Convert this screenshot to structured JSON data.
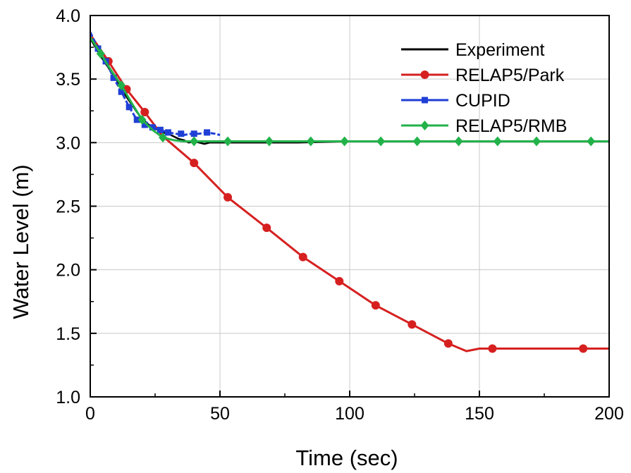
{
  "chart_data": {
    "type": "line",
    "title": "",
    "xlabel": "Time (sec)",
    "ylabel": "Water Level (m)",
    "xlim": [
      0,
      200
    ],
    "ylim": [
      1.0,
      4.0
    ],
    "xticks": [
      "0",
      "50",
      "100",
      "150",
      "200"
    ],
    "yticks": [
      "1.0",
      "1.5",
      "2.0",
      "2.5",
      "3.0",
      "3.5",
      "4.0"
    ],
    "grid": true,
    "legend_position": "top-right",
    "series": [
      {
        "name": "Experiment",
        "color": "#000000",
        "marker": "none",
        "x": [
          0,
          2,
          4,
          6,
          8,
          10,
          12,
          14,
          16,
          18,
          20,
          22,
          24,
          26,
          28,
          30,
          32,
          34,
          36,
          38,
          40,
          42,
          44,
          46,
          50,
          60,
          80,
          100,
          120,
          140,
          160,
          180,
          200
        ],
        "y": [
          3.82,
          3.75,
          3.68,
          3.62,
          3.56,
          3.5,
          3.42,
          3.36,
          3.3,
          3.24,
          3.19,
          3.15,
          3.12,
          3.1,
          3.08,
          3.07,
          3.05,
          3.03,
          3.02,
          3.0,
          3.01,
          3.0,
          2.99,
          3.0,
          3.0,
          3.0,
          3.0,
          3.01,
          3.01,
          3.01,
          3.01,
          3.01,
          3.01
        ]
      },
      {
        "name": "RELAP5/Park",
        "color": "#d62020",
        "marker": "circle",
        "x": [
          0,
          7,
          14,
          21,
          28,
          40,
          53,
          68,
          82,
          96,
          110,
          124,
          138,
          145,
          150,
          155,
          170,
          190,
          200
        ],
        "y": [
          3.85,
          3.64,
          3.42,
          3.24,
          3.05,
          2.84,
          2.57,
          2.33,
          2.1,
          1.91,
          1.72,
          1.57,
          1.42,
          1.36,
          1.38,
          1.38,
          1.38,
          1.38,
          1.38
        ],
        "marker_x": [
          7,
          14,
          21,
          40,
          53,
          68,
          82,
          96,
          110,
          124,
          138,
          155,
          190
        ],
        "marker_y": [
          3.64,
          3.42,
          3.24,
          2.84,
          2.57,
          2.33,
          2.1,
          1.91,
          1.72,
          1.57,
          1.42,
          1.38,
          1.38
        ]
      },
      {
        "name": "CUPID",
        "color": "#1f3fd6",
        "marker": "square",
        "x": [
          0,
          3,
          6,
          9,
          12,
          15,
          18,
          21,
          24,
          27,
          30,
          33,
          36,
          39,
          42,
          45,
          48,
          50
        ],
        "y": [
          3.87,
          3.74,
          3.64,
          3.51,
          3.4,
          3.28,
          3.18,
          3.14,
          3.12,
          3.1,
          3.08,
          3.07,
          3.06,
          3.07,
          3.07,
          3.08,
          3.07,
          3.06
        ],
        "marker_x": [
          3,
          6,
          9,
          12,
          15,
          18,
          21,
          24,
          27,
          30,
          35,
          40,
          45
        ],
        "marker_y": [
          3.74,
          3.64,
          3.51,
          3.4,
          3.28,
          3.18,
          3.14,
          3.12,
          3.1,
          3.08,
          3.07,
          3.07,
          3.08
        ]
      },
      {
        "name": "RELAP5/RMB",
        "color": "#22b24a",
        "marker": "diamond",
        "x": [
          0,
          4,
          8,
          12,
          16,
          20,
          24,
          28,
          32,
          36,
          40,
          50,
          60,
          80,
          100,
          120,
          140,
          160,
          180,
          200
        ],
        "y": [
          3.83,
          3.7,
          3.57,
          3.45,
          3.31,
          3.18,
          3.1,
          3.04,
          3.02,
          3.01,
          3.01,
          3.01,
          3.01,
          3.01,
          3.01,
          3.01,
          3.01,
          3.01,
          3.01,
          3.01
        ],
        "marker_x": [
          4,
          12,
          20,
          28,
          40,
          53,
          69,
          85,
          98,
          112,
          126,
          142,
          157,
          172,
          193
        ],
        "marker_y": [
          3.7,
          3.45,
          3.18,
          3.04,
          3.01,
          3.01,
          3.01,
          3.01,
          3.01,
          3.01,
          3.01,
          3.01,
          3.01,
          3.01,
          3.01
        ]
      }
    ]
  }
}
